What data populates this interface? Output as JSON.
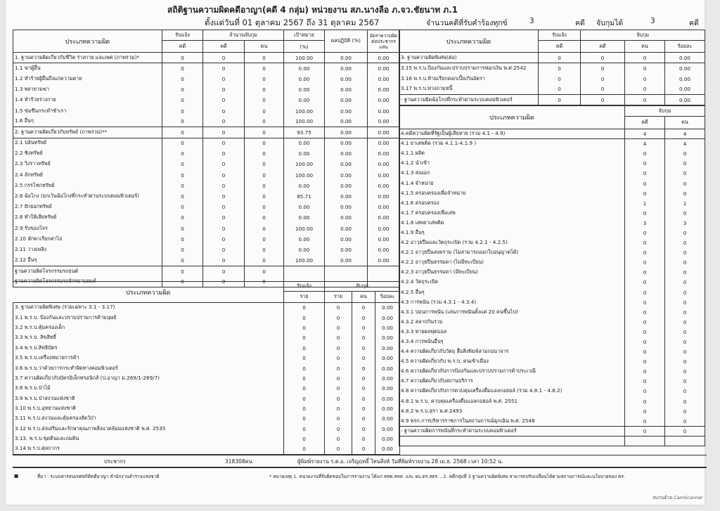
{
  "header": {
    "title": "สถิติฐานความผิดคดีอาญา(คดี 4 กลุ่ม) หน่วยงาน สภ.นางลือ ภ.จว.ชัยนาท ภ.1",
    "period": "ตั้งแต่วันที่ 01 ตุลาคม 2567 ถึง 31 ตุลาคม 2567",
    "complaints_label": "จำนวนคดีที่รับคำร้องทุกข์",
    "complaints_value": "3",
    "case_unit": "คดี",
    "arrested_label": "จับกุมได้",
    "arrested_value": "3"
  },
  "left_table": {
    "headers": {
      "type": "ประเภทความผิด",
      "reported": "รับแจ้ง",
      "arrest_count": "จำนวนจับกุม",
      "target": "เป้าหมาย",
      "result": "ผลปฏิบัติ (%)",
      "rate": "อัตราความผิดต่อประชากรแสน",
      "case": "คดี",
      "person": "คน",
      "pct": "(%)"
    },
    "rows": [
      {
        "label": "1. ฐานความผิดเกี่ยวกับชีวิต ร่างกาย และเพศ (ภาพรวม)*",
        "values": [
          "0",
          "0",
          "0",
          "100.00",
          "0.00",
          "0.00"
        ],
        "border": true
      },
      {
        "label": "1.1 ฆ่าผู้อื่น",
        "values": [
          "0",
          "0",
          "0",
          "0.00",
          "0.00",
          "0.00"
        ],
        "border": true
      },
      {
        "label": "1.2 ทำร้ายผู้อื่นถึงแก่ความตาย",
        "values": [
          "0",
          "0",
          "0",
          "0.00",
          "0.00",
          "0.00"
        ]
      },
      {
        "label": "1.3 พยายามฆ่า",
        "values": [
          "0",
          "0",
          "0",
          "0.00",
          "0.00",
          "0.00"
        ]
      },
      {
        "label": "1.4 ทำร้ายร่างกาย",
        "values": [
          "0",
          "0",
          "0",
          "0.00",
          "0.00",
          "0.00"
        ]
      },
      {
        "label": "1.5 ข่มขืนกระทำชำเรา",
        "values": [
          "0",
          "0",
          "0",
          "100.00",
          "0.00",
          "0.00"
        ]
      },
      {
        "label": "1.6 อื่นๆ",
        "values": [
          "0",
          "0",
          "0",
          "100.00",
          "0.00",
          "0.00"
        ]
      },
      {
        "label": "2. ฐานความผิดเกี่ยวกับทรัพย์ (ภาพรวม)**",
        "values": [
          "0",
          "0",
          "0",
          "93.75",
          "0.00",
          "0.00"
        ],
        "border": true
      },
      {
        "label": "2.1 ปล้นทรัพย์",
        "values": [
          "0",
          "0",
          "0",
          "0.00",
          "0.00",
          "0.00"
        ],
        "border": true
      },
      {
        "label": "2.2 ชิงทรัพย์",
        "values": [
          "0",
          "0",
          "0",
          "0.00",
          "0.00",
          "0.00"
        ]
      },
      {
        "label": "2.3 วิ่งราวทรัพย์",
        "values": [
          "0",
          "0",
          "0",
          "100.00",
          "0.00",
          "0.00"
        ]
      },
      {
        "label": "2.4 ลักทรัพย์",
        "values": [
          "0",
          "0",
          "0",
          "100.00",
          "0.00",
          "0.00"
        ]
      },
      {
        "label": "2.5 กรรโชกทรัพย์",
        "values": [
          "0",
          "0",
          "0",
          "0.00",
          "0.00",
          "0.00"
        ]
      },
      {
        "label": "2.6 ฉ้อโกง (ยกเว้นฉ้อโกงที่กระทำผ่านระบบคอมพิวเตอร์)",
        "values": [
          "0",
          "0",
          "0",
          "85.71",
          "0.00",
          "0.00"
        ]
      },
      {
        "label": "2.7 ยักยอกทรัพย์",
        "values": [
          "0",
          "0",
          "0",
          "0.00",
          "0.00",
          "0.00"
        ]
      },
      {
        "label": "2.8 ทำให้เสียทรัพย์",
        "values": [
          "0",
          "0",
          "0",
          "0.00",
          "0.00",
          "0.00"
        ]
      },
      {
        "label": "2.9 รับของโจร",
        "values": [
          "0",
          "0",
          "0",
          "100.00",
          "0.00",
          "0.00"
        ]
      },
      {
        "label": "2.10 ลักพาเรียกค่าไถ่",
        "values": [
          "0",
          "0",
          "0",
          "0.00",
          "0.00",
          "0.00"
        ]
      },
      {
        "label": "2.11 วางเพลิง",
        "values": [
          "0",
          "0",
          "0",
          "0.00",
          "0.00",
          "0.00"
        ]
      },
      {
        "label": "2.12 อื่นๆ",
        "values": [
          "0",
          "0",
          "0",
          "100.00",
          "0.00",
          "0.00"
        ]
      },
      {
        "label": "ฐานความผิดโจรกรรมรถยนต์",
        "values": [
          "0",
          "0",
          "0",
          "",
          "",
          ""
        ],
        "border": true
      },
      {
        "label": "ฐานความผิดโจรกรรมรถจักรยานยนต์",
        "values": [
          "0",
          "0",
          "0",
          "",
          "",
          ""
        ]
      }
    ]
  },
  "special_table": {
    "headers": {
      "type": "ประเภทความผิด",
      "reported": "รับแจ้ง",
      "arrest": "จับกุม",
      "case": "ราย",
      "case2": "ราย",
      "person": "คน",
      "pct": "ร้อยละ"
    },
    "rows": [
      {
        "label": "3. ฐานความผิดพิเศษ (รวมเฉพาะ 3.1 - 3.17)",
        "values": [
          "0",
          "0",
          "0",
          "0.00"
        ]
      },
      {
        "label": "3.1 พ.ร.บ. ป้องกันและปราบปรามการค้ามนุษย์",
        "values": [
          "0",
          "0",
          "0",
          "0.00"
        ]
      },
      {
        "label": "3.2 พ.ร.บ.คุ้มครองเด็ก",
        "values": [
          "0",
          "0",
          "0",
          "0.00"
        ]
      },
      {
        "label": "3.3 พ.ร.บ. ลิขสิทธิ์",
        "values": [
          "0",
          "0",
          "0",
          "0.00"
        ]
      },
      {
        "label": "3.4 พ.ร.บ.สิทธิบัตร",
        "values": [
          "0",
          "0",
          "0",
          "0.00"
        ]
      },
      {
        "label": "3.5 พ.ร.บ.เครื่องหมายการค้า",
        "values": [
          "0",
          "0",
          "0",
          "0.00"
        ]
      },
      {
        "label": "3.6 พ.ร.บ.ว่าด้วยการกระทำผิดทางคอมพิวเตอร์",
        "values": [
          "0",
          "0",
          "0",
          "0.00"
        ]
      },
      {
        "label": "3.7 ความผิดเกี่ยวกับบัตรอิเล็กทรอนิกส์ (ป.อาญา ม.269/1-269/7)",
        "values": [
          "0",
          "0",
          "0",
          "0.00"
        ]
      },
      {
        "label": "3.8 พ.ร.บ.ป่าไม้",
        "values": [
          "0",
          "0",
          "0",
          "0.00"
        ]
      },
      {
        "label": "3.9 พ.ร.บ.ป่าสงวนแห่งชาติ",
        "values": [
          "0",
          "0",
          "0",
          "0.00"
        ]
      },
      {
        "label": "3.10 พ.ร.บ.อุทยานแห่งชาติ",
        "values": [
          "0",
          "0",
          "0",
          "0.00"
        ]
      },
      {
        "label": "3.11 พ.ร.บ.สงวนและคุ้มครองสัตว์ป่า",
        "values": [
          "0",
          "0",
          "0",
          "0.00"
        ]
      },
      {
        "label": "3.12 พ.ร.บ.ส่งเสริมและรักษาคุณภาพสิ่งแวดล้อมแห่งชาติ พ.ศ. 2535",
        "values": [
          "0",
          "0",
          "0",
          "0.00"
        ]
      },
      {
        "label": "3.13. พ.ร.บ.ขุดดินและถมดิน",
        "values": [
          "0",
          "0",
          "0",
          "0.00"
        ]
      },
      {
        "label": "3.14 พ.ร.บ.ศุลกากร",
        "values": [
          "0",
          "0",
          "0",
          "0.00"
        ]
      }
    ]
  },
  "right_table": {
    "headers": {
      "type": "ประเภทความผิด",
      "reported": "รับแจ้ง",
      "arrest": "จับกุม",
      "case": "คดี",
      "case2": "คดี",
      "person": "คน",
      "pct": "ร้อยละ"
    },
    "rows": [
      {
        "label": "3. ฐานความผิดพิเศษ(ต่อ)",
        "values": [
          "0",
          "0",
          "0",
          "0.00"
        ],
        "border": true
      },
      {
        "label": "3.15 พ.ร.บ.ป้องกันและปราบปรามการฟอกเงิน พ.ศ.2542",
        "values": [
          "0",
          "0",
          "0",
          "0.00"
        ],
        "border": true
      },
      {
        "label": "3.16 พ.ร.บ.ห้ามเรียกดอกเบี้ยเกินอัตรา",
        "values": [
          "0",
          "0",
          "0",
          "0.00"
        ]
      },
      {
        "label": "3.17 พ.ร.บ.ทวงถามหนี้",
        "values": [
          "0",
          "0",
          "0",
          "0.00"
        ]
      },
      {
        "label": "- ฐานความผิดฉ้อโกงที่กระทำผ่านระบบคอมพิวเตอร์",
        "values": [
          "0",
          "0",
          "0",
          "0.00"
        ],
        "border": true
      }
    ]
  },
  "state_table": {
    "headers": {
      "type": "ประเภทความผิด",
      "arrest": "จับกุม",
      "case": "คดี",
      "person": "คน"
    },
    "rows": [
      {
        "label": "4.คดีความผิดที่รัฐเป็นผู้เสียหาย (รวม 4.1 - 4.9)",
        "values": [
          "4",
          "4"
        ],
        "border": true
      },
      {
        "label": "4.1 ยาเสพติด (รวม 4.1.1-4.1.9 )",
        "values": [
          "4",
          "4"
        ],
        "border": true
      },
      {
        "label": "4.1.1 ผลิต",
        "values": [
          "0",
          "0"
        ]
      },
      {
        "label": "4.1.2 นำเข้า",
        "values": [
          "0",
          "0"
        ]
      },
      {
        "label": "4.1.3 ส่งออก",
        "values": [
          "0",
          "0"
        ]
      },
      {
        "label": "4.1.4 จำหน่าย",
        "values": [
          "0",
          "0"
        ]
      },
      {
        "label": "4.1.5 ครอบครองเพื่อจำหน่าย",
        "values": [
          "0",
          "0"
        ]
      },
      {
        "label": "4.1.6 ครอบครอง",
        "values": [
          "1",
          "1"
        ]
      },
      {
        "label": "4.1.7 ครอบครองเพื่อเสพ",
        "values": [
          "0",
          "0"
        ]
      },
      {
        "label": "4.1.8 เสพยาเสพติด",
        "values": [
          "3",
          "3"
        ]
      },
      {
        "label": "4.1.9 อื่นๆ",
        "values": [
          "0",
          "0"
        ]
      },
      {
        "label": "4.2 อาวุธปืนและวัตถุระเบิด (รวม 4.2.1 - 4.2.5)",
        "values": [
          "0",
          "0"
        ]
      },
      {
        "label": "4.2.1 อาวุธปืนสงคราม (ไม่สามารถออกใบอนุญาตได้)",
        "values": [
          "0",
          "0"
        ]
      },
      {
        "label": "4.2.2 อาวุธปืนธรรมดา (ไม่มีทะเบียน)",
        "values": [
          "0",
          "0"
        ]
      },
      {
        "label": "4.2.3 อาวุธปืนธรรมดา (มีทะเบียน)",
        "values": [
          "0",
          "0"
        ]
      },
      {
        "label": "4.2.4 วัตถุระเบิด",
        "values": [
          "0",
          "0"
        ]
      },
      {
        "label": "4.2.5 อื่นๆ",
        "values": [
          "0",
          "0"
        ]
      },
      {
        "label": "4.3 การพนัน (รวม 4.3.1 - 4.3.4)",
        "values": [
          "0",
          "0"
        ]
      },
      {
        "label": "4.3.1 บ่อนการพนัน (เล่นการพนันตั้งแต่ 20 คนขึ้นไป)",
        "values": [
          "0",
          "0"
        ]
      },
      {
        "label": "4.3.2 สลากกินรวบ",
        "values": [
          "0",
          "0"
        ]
      },
      {
        "label": "4.3.3 ทายผลฟุตบอล",
        "values": [
          "0",
          "0"
        ]
      },
      {
        "label": "4.3.4 การพนันอื่นๆ",
        "values": [
          "0",
          "0"
        ]
      },
      {
        "label": "4.4 ความผิดเกี่ยวกับวัตถุ สื่อสิ่งพิมพ์ลามกอนาจาร",
        "values": [
          "0",
          "0"
        ]
      },
      {
        "label": "4.5 ความผิดเกี่ยวกับ พ.ร.บ. คนเข้าเมือง",
        "values": [
          "0",
          "0"
        ]
      },
      {
        "label": "4.6 ความผิดเกี่ยวกับการป้องกันและปราบปรามการค้าประเวณี",
        "values": [
          "0",
          "0"
        ]
      },
      {
        "label": "4.7 ความผิดเกี่ยวกับสถานบริการ",
        "values": [
          "0",
          "0"
        ]
      },
      {
        "label": "4.8 ความผิดเกี่ยวกับการควบคุมเครื่องดื่มแอลกอฮอล์ (รวม 4.8.1 - 4.8.2)",
        "values": [
          "0",
          "0"
        ]
      },
      {
        "label": "4.8.1 พ.ร.บ. ควบคุมเครื่องดื่มแอลกอฮอล์ พ.ศ. 2551",
        "values": [
          "0",
          "0"
        ]
      },
      {
        "label": "4.8.2 พ.ร.บ.สุรา พ.ศ.2493",
        "values": [
          "0",
          "0"
        ]
      },
      {
        "label": "4.9 พรก.การบริหารราชการในสถานการณ์ฉุกเฉิน พ.ศ. 2548",
        "values": [
          "0",
          "0"
        ]
      },
      {
        "label": "- ฐานความผิดการพนันที่กระทำผ่านระบบคอมพิวเตอร์",
        "values": [
          "0",
          "0"
        ],
        "border": true
      },
      {
        "label": "",
        "values": [
          "",
          ""
        ],
        "border": true
      }
    ]
  },
  "summary": {
    "population_label": "ประชากร",
    "population_value": "318308คน",
    "printed_by": "ผู้พิมพ์รายงาน ร.ต.อ. เจริญฤทธิ์ ไทนสิงห์ วันที่พิมพ์รายงาน 28 เม.ย. 2568  เวลา 10:52 น."
  },
  "footer": {
    "source": "ที่มา : ระบบสารสนเทศสถิติคดีอาญา  สำนักงานตำรวจแห่งชาติ",
    "note": "* หมายเหตุ  1. หน่วยงานที่รับผิดชอบในการรายงาน ได้แก่ สทท.สทส. และ ผบ.ตร.สตร. , 2. คดีกลุ่มที่ 3 ฐานความผิดพิเศษ สามารถปรับเปลี่ยนได้ตามสถานการณ์และนโยบายของ ตร.",
    "watermark": "สแกนด้วย CamScanner"
  }
}
